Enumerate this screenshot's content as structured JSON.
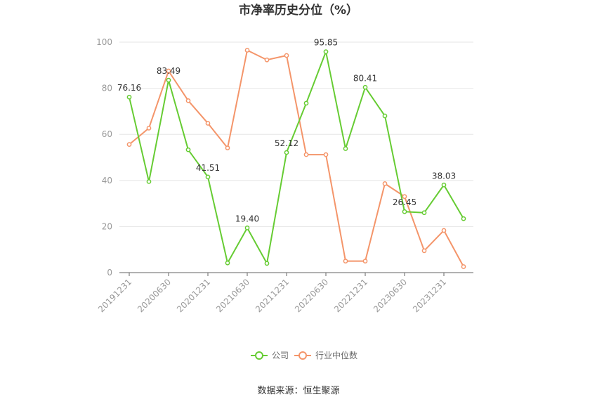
{
  "chart_data": {
    "type": "line",
    "title": "市净率历史分位（%）",
    "ylim": [
      0,
      100
    ],
    "yticks": [
      0,
      20,
      40,
      60,
      80,
      100
    ],
    "grid": true,
    "legend_position": "bottom",
    "x": [
      "20191231",
      "20200331",
      "20200630",
      "20200930",
      "20201231",
      "20210331",
      "20210630",
      "20210930",
      "20211231",
      "20220331",
      "20220630",
      "20220930",
      "20221231",
      "20230331",
      "20230630",
      "20230930",
      "20231231",
      "20240331"
    ],
    "x_tick_labels": [
      "20191231",
      "20200630",
      "20201231",
      "20210630",
      "20211231",
      "20220630",
      "20221231",
      "20230630",
      "20231231"
    ],
    "series": [
      {
        "name": "公司",
        "color": "#66cc33",
        "values": [
          76.16,
          39.5,
          83.49,
          53.3,
          41.51,
          4.2,
          19.4,
          4.0,
          52.12,
          73.5,
          95.85,
          53.8,
          80.41,
          68.0,
          26.45,
          26.0,
          38.03,
          23.4
        ],
        "labels": [
          {
            "index": 0,
            "text": "76.16"
          },
          {
            "index": 2,
            "text": "83.49"
          },
          {
            "index": 4,
            "text": "41.51"
          },
          {
            "index": 6,
            "text": "19.40"
          },
          {
            "index": 8,
            "text": "52.12"
          },
          {
            "index": 10,
            "text": "95.85"
          },
          {
            "index": 12,
            "text": "80.41"
          },
          {
            "index": 14,
            "text": "26.45"
          },
          {
            "index": 16,
            "text": "38.03"
          }
        ]
      },
      {
        "name": "行业中位数",
        "color": "#f4956a",
        "values": [
          55.6,
          62.7,
          87.5,
          74.6,
          64.8,
          54.1,
          96.5,
          92.3,
          94.2,
          51.2,
          51.2,
          5.0,
          5.0,
          38.6,
          33.0,
          9.5,
          18.3,
          2.6
        ]
      }
    ]
  },
  "footer": {
    "source": "数据来源：恒生聚源"
  }
}
